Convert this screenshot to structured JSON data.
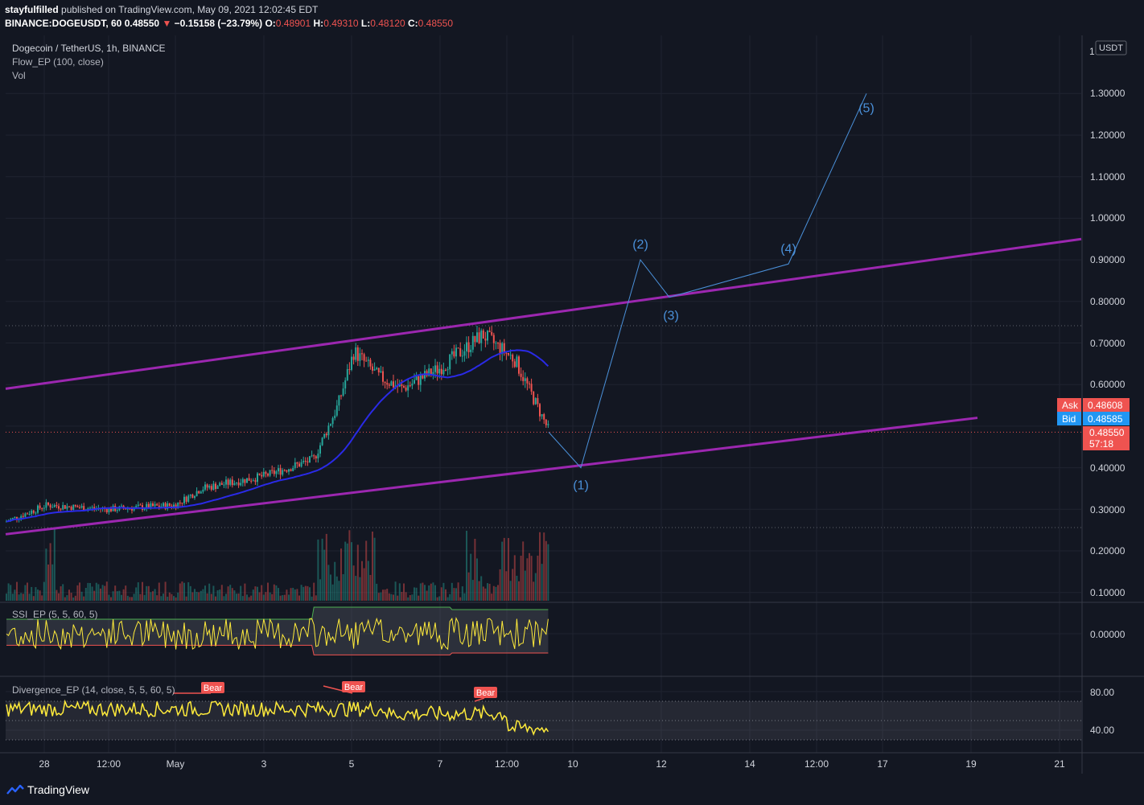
{
  "header": {
    "author": "stayfulfilled",
    "published_text": " published on TradingView.com, May 09, 2021 12:02:45 EDT",
    "symbol": "BINANCE:DOGEUSDT, 60",
    "last": "0.48550",
    "arrow": "▼",
    "change": "−0.15158 (−23.79%)",
    "o_label": "O:",
    "o": "0.48901",
    "h_label": "H:",
    "h": "0.49310",
    "l_label": "L:",
    "l": "0.48120",
    "c_label": "C:",
    "c": "0.48550"
  },
  "legend": {
    "main_title": "Dogecoin / TetherUS, 1h, BINANCE",
    "flow": "Flow_EP (100, close)",
    "vol": "Vol",
    "ssi": "SSI_EP (5, 5, 60, 5)",
    "divergence": "Divergence_EP (14, close, 5, 5, 60, 5)"
  },
  "price_axis": {
    "currency": "USDT",
    "top_label": "1",
    "ticks": [
      "1.30000",
      "1.20000",
      "1.10000",
      "1.00000",
      "0.90000",
      "0.80000",
      "0.70000",
      "0.60000",
      "0.40000",
      "0.30000",
      "0.20000",
      "0.10000"
    ]
  },
  "badges": {
    "ask_label": "Ask",
    "ask": "0.48608",
    "bid_label": "Bid",
    "bid": "0.48585",
    "last": "0.48550",
    "countdown": "57:18"
  },
  "ssi_axis": {
    "ticks": [
      "0.00000"
    ]
  },
  "div_axis": {
    "ticks": [
      "80.00",
      "40.00"
    ]
  },
  "time_axis": {
    "ticks": [
      "28",
      "12:00",
      "May",
      "3",
      "5",
      "7",
      "12:00",
      "10",
      "12",
      "14",
      "12:00",
      "17",
      "19",
      "21"
    ]
  },
  "wave_labels": [
    "(1)",
    "(2)",
    "(3)",
    "(4)",
    "(5)"
  ],
  "bear_label": "Bear",
  "footer": {
    "brand": "TradingView"
  },
  "colors": {
    "background": "#131722",
    "grid": "#1f2330",
    "up": "#26a69a",
    "down": "#ef5350",
    "channel": "#9c27b0",
    "wave": "#4a90d9",
    "ma": "#2a2ae6",
    "ssi": "#ffeb3b",
    "bid": "#2196f3"
  },
  "chart_data": {
    "type": "candlestick",
    "symbol": "DOGEUSDT",
    "timeframe": "1h",
    "x_ticks": [
      "28",
      "12:00",
      "May",
      "3",
      "5",
      "7",
      "12:00",
      "10",
      "12",
      "14",
      "12:00",
      "17",
      "19",
      "21"
    ],
    "y_range": [
      0.08,
      1.38
    ],
    "price_path": [
      [
        "28",
        0.27
      ],
      [
        "28",
        0.31
      ],
      [
        "12:00",
        0.3
      ],
      [
        "May",
        0.31
      ],
      [
        "May",
        0.35
      ],
      [
        "3",
        0.38
      ],
      [
        "3",
        0.42
      ],
      [
        "5",
        0.55
      ],
      [
        "5",
        0.68
      ],
      [
        "5",
        0.62
      ],
      [
        "7",
        0.59
      ],
      [
        "7",
        0.64
      ],
      [
        "7",
        0.72
      ],
      [
        "12:00",
        0.66
      ],
      [
        "12:00",
        0.49
      ]
    ],
    "elliott_wave_projection": [
      {
        "label": "(1)",
        "price": 0.4
      },
      {
        "label": "(2)",
        "price": 0.9
      },
      {
        "label": "(3)",
        "price": 0.81
      },
      {
        "label": "(4)",
        "price": 0.89
      },
      {
        "label": "(5)",
        "price": 1.3
      }
    ],
    "channel": {
      "upper_from": 0.59,
      "upper_to": 0.95,
      "lower_from": 0.24,
      "lower_to": 0.52
    },
    "last_price": 0.4855,
    "ask": 0.48608,
    "bid": 0.48585,
    "divergence_levels": [
      80,
      40
    ]
  }
}
